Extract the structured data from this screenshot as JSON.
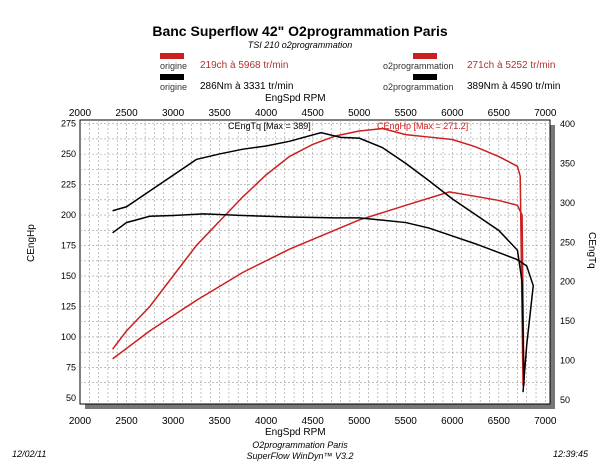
{
  "chart_data": {
    "type": "line",
    "title": "Banc Superflow 42\" O2programmation Paris",
    "subtitle": "TSI 210  o2programmation",
    "xlabel": "EngSpd RPM",
    "ylabel_left": "CEngHp",
    "ylabel_right": "CEngTq",
    "xlim": [
      2000,
      7050
    ],
    "ylim_left": [
      45,
      278
    ],
    "ylim_right": [
      45,
      405
    ],
    "xticks": [
      2000,
      2500,
      3000,
      3500,
      4000,
      4500,
      5000,
      5500,
      6000,
      6500,
      7000
    ],
    "yticks_left": [
      50,
      75,
      100,
      125,
      150,
      175,
      200,
      225,
      250,
      275
    ],
    "yticks_right": [
      50,
      100,
      150,
      200,
      250,
      300,
      350,
      400
    ],
    "grid": true,
    "legend": [
      {
        "name": "origine",
        "text": "219ch à 5968 tr/min",
        "color": "#cc1f1f",
        "pos": "top-left"
      },
      {
        "name": "origine",
        "text": "286Nm à 3331 tr/min",
        "color": "#000000",
        "pos": "top-left"
      },
      {
        "name": "o2programmation",
        "text": "271ch à 5252 tr/min",
        "color": "#cc1f1f",
        "pos": "top-right"
      },
      {
        "name": "o2programmation",
        "text": "389Nm à 4590 tr/min",
        "color": "#000000",
        "pos": "top-right"
      }
    ],
    "annotations": {
      "tq": "CEngTq [Max = 389]",
      "hp": "CEngHp [Max = 271.2]"
    },
    "series": [
      {
        "name": "o2programmation Hp",
        "axis": "left",
        "color": "#cc1f1f",
        "x": [
          2350,
          2500,
          2750,
          3000,
          3250,
          3500,
          3750,
          4000,
          4250,
          4500,
          4750,
          5000,
          5250,
          5500,
          5750,
          6000,
          6250,
          6500,
          6700,
          6730,
          6760
        ],
        "y": [
          90,
          105,
          125,
          150,
          175,
          195,
          215,
          233,
          248,
          258,
          265,
          269,
          271,
          266,
          264,
          262,
          256,
          248,
          240,
          232,
          60
        ]
      },
      {
        "name": "origine Hp",
        "axis": "left",
        "color": "#cc1f1f",
        "x": [
          2350,
          2750,
          3250,
          3750,
          4250,
          4750,
          5000,
          5500,
          5968,
          6200,
          6500,
          6700,
          6750,
          6770
        ],
        "y": [
          82,
          105,
          130,
          153,
          172,
          188,
          196,
          208,
          219,
          216,
          212,
          208,
          200,
          60
        ]
      },
      {
        "name": "o2programmation Tq",
        "axis": "right",
        "color": "#000000",
        "x": [
          2350,
          2500,
          2750,
          3000,
          3250,
          3500,
          3750,
          4000,
          4250,
          4590,
          4800,
          5000,
          5250,
          5500,
          5750,
          6000,
          6250,
          6500,
          6700,
          6750,
          6770
        ],
        "y": [
          290,
          295,
          315,
          335,
          355,
          362,
          368,
          372,
          378,
          389,
          383,
          382,
          370,
          350,
          328,
          305,
          285,
          265,
          240,
          200,
          70
        ]
      },
      {
        "name": "origine Tq",
        "axis": "right",
        "color": "#000000",
        "x": [
          2350,
          2500,
          2750,
          3000,
          3331,
          3750,
          4250,
          4750,
          5000,
          5500,
          5750,
          6000,
          6250,
          6500,
          6700,
          6800,
          6870,
          6800,
          6760
        ],
        "y": [
          262,
          275,
          283,
          284,
          286,
          284,
          282,
          281,
          281,
          275,
          268,
          258,
          248,
          237,
          228,
          220,
          195,
          120,
          60
        ]
      }
    ]
  },
  "footer": {
    "date": "12/02/11",
    "time": "12:39:45",
    "line1": "O2programmation Paris",
    "line2": "SuperFlow WinDyn™ V3.2"
  }
}
